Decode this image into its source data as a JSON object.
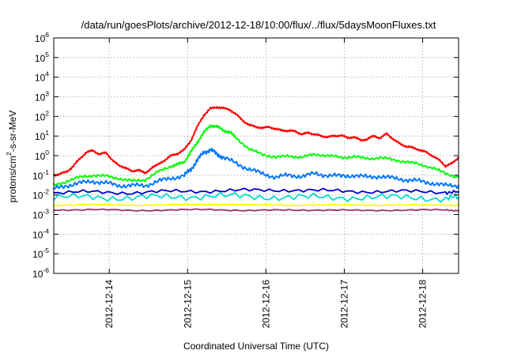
{
  "chart_data": {
    "type": "line",
    "title": "/data/run/goesPlots/archive/2012-12-18/10:00/flux/../flux/5daysMoonFluxes.txt",
    "xlabel": "Coordinated Universal Time (UTC)",
    "ylabel": {
      "prefix": "protons/cm",
      "sup": "2",
      "suffix": "-s-sr-MeV"
    },
    "yscale": "log",
    "ylim": [
      1e-06,
      1000000.0
    ],
    "xlim": [
      "2012-12-13T07:00",
      "2012-12-18T11:00"
    ],
    "grid": true,
    "x_ticks": [
      {
        "value": "2012-12-14T00:00",
        "label": "2012-12-14"
      },
      {
        "value": "2012-12-15T00:00",
        "label": "2012-12-15"
      },
      {
        "value": "2012-12-16T00:00",
        "label": "2012-12-16"
      },
      {
        "value": "2012-12-17T00:00",
        "label": "2012-12-17"
      },
      {
        "value": "2012-12-18T00:00",
        "label": "2012-12-18"
      }
    ],
    "y_ticks": [
      {
        "exp": "6"
      },
      {
        "exp": "5"
      },
      {
        "exp": "4"
      },
      {
        "exp": "3"
      },
      {
        "exp": "2"
      },
      {
        "exp": "1"
      },
      {
        "exp": "0"
      },
      {
        "exp": "-1"
      },
      {
        "exp": "-2"
      },
      {
        "exp": "-3"
      },
      {
        "exp": "-4"
      },
      {
        "exp": "-5"
      },
      {
        "exp": "-6"
      }
    ],
    "y_tick_base": "10",
    "series": [
      {
        "color": "#ff0000",
        "x": [
          "2012-12-13T07:00",
          "2012-12-13T09:00",
          "2012-12-13T11:00",
          "2012-12-13T13:00",
          "2012-12-13T15:00",
          "2012-12-13T17:00",
          "2012-12-13T19:00",
          "2012-12-13T21:00",
          "2012-12-13T23:00",
          "2012-12-14T01:00",
          "2012-12-14T03:00",
          "2012-12-14T05:00",
          "2012-12-14T07:00",
          "2012-12-14T09:00",
          "2012-12-14T11:00",
          "2012-12-14T13:00",
          "2012-12-14T15:00",
          "2012-12-14T17:00",
          "2012-12-14T19:00",
          "2012-12-14T21:00",
          "2012-12-14T23:00",
          "2012-12-15T01:00",
          "2012-12-15T03:00",
          "2012-12-15T05:00",
          "2012-12-15T07:00",
          "2012-12-15T09:00",
          "2012-12-15T11:00",
          "2012-12-15T13:00",
          "2012-12-15T15:00",
          "2012-12-15T17:00",
          "2012-12-15T19:00",
          "2012-12-15T21:00",
          "2012-12-15T23:00",
          "2012-12-16T01:00",
          "2012-12-16T03:00",
          "2012-12-16T05:00",
          "2012-12-16T07:00",
          "2012-12-16T09:00",
          "2012-12-16T11:00",
          "2012-12-16T13:00",
          "2012-12-16T15:00",
          "2012-12-16T17:00",
          "2012-12-16T19:00",
          "2012-12-16T21:00",
          "2012-12-16T23:00",
          "2012-12-17T01:00",
          "2012-12-17T03:00",
          "2012-12-17T05:00",
          "2012-12-17T07:00",
          "2012-12-17T09:00",
          "2012-12-17T11:00",
          "2012-12-17T13:00",
          "2012-12-17T15:00",
          "2012-12-17T17:00",
          "2012-12-17T19:00",
          "2012-12-17T21:00",
          "2012-12-17T23:00",
          "2012-12-18T01:00",
          "2012-12-18T03:00",
          "2012-12-18T05:00",
          "2012-12-18T07:00",
          "2012-12-18T09:00",
          "2012-12-18T11:00"
        ],
        "y": [
          0.1,
          0.12,
          0.15,
          0.3,
          0.7,
          1.5,
          1.8,
          1.2,
          1.4,
          0.6,
          0.3,
          0.25,
          0.15,
          0.2,
          0.12,
          0.25,
          0.35,
          0.6,
          1.0,
          1.3,
          2.0,
          6,
          30,
          120,
          250,
          300,
          260,
          220,
          120,
          60,
          35,
          30,
          25,
          30,
          22,
          20,
          18,
          18,
          12,
          15,
          12,
          10,
          9,
          10,
          11,
          8,
          9,
          6,
          7,
          10,
          8,
          13,
          7,
          4,
          3,
          2.5,
          2,
          1.5,
          1.0,
          0.6,
          0.3,
          0.4,
          0.8
        ]
      },
      {
        "color": "#00ff00",
        "x": [
          "2012-12-13T07:00",
          "2012-12-13T11:00",
          "2012-12-13T15:00",
          "2012-12-13T19:00",
          "2012-12-13T23:00",
          "2012-12-14T03:00",
          "2012-12-14T07:00",
          "2012-12-14T11:00",
          "2012-12-14T15:00",
          "2012-12-14T19:00",
          "2012-12-14T21:00",
          "2012-12-14T23:00",
          "2012-12-15T01:00",
          "2012-12-15T03:00",
          "2012-12-15T05:00",
          "2012-12-15T07:00",
          "2012-12-15T09:00",
          "2012-12-15T11:00",
          "2012-12-15T13:00",
          "2012-12-15T15:00",
          "2012-12-15T19:00",
          "2012-12-15T23:00",
          "2012-12-16T03:00",
          "2012-12-16T07:00",
          "2012-12-16T11:00",
          "2012-12-16T15:00",
          "2012-12-16T19:00",
          "2012-12-16T23:00",
          "2012-12-17T03:00",
          "2012-12-17T07:00",
          "2012-12-17T11:00",
          "2012-12-17T15:00",
          "2012-12-17T19:00",
          "2012-12-17T23:00",
          "2012-12-18T03:00",
          "2012-12-18T07:00",
          "2012-12-18T11:00"
        ],
        "y": [
          0.03,
          0.05,
          0.08,
          0.1,
          0.09,
          0.07,
          0.05,
          0.06,
          0.15,
          0.3,
          0.35,
          0.5,
          1.5,
          5,
          15,
          35,
          30,
          20,
          15,
          8,
          2,
          1.2,
          0.8,
          1.0,
          0.8,
          1.2,
          1.0,
          0.8,
          0.9,
          0.7,
          0.8,
          0.6,
          0.5,
          0.35,
          0.25,
          0.12,
          0.08
        ]
      },
      {
        "color": "#0077ff",
        "x": [
          "2012-12-13T07:00",
          "2012-12-13T11:00",
          "2012-12-13T15:00",
          "2012-12-13T19:00",
          "2012-12-13T23:00",
          "2012-12-14T03:00",
          "2012-12-14T07:00",
          "2012-12-14T11:00",
          "2012-12-14T15:00",
          "2012-12-14T19:00",
          "2012-12-14T23:00",
          "2012-12-15T01:00",
          "2012-12-15T03:00",
          "2012-12-15T05:00",
          "2012-12-15T07:00",
          "2012-12-15T09:00",
          "2012-12-15T11:00",
          "2012-12-15T15:00",
          "2012-12-15T19:00",
          "2012-12-15T23:00",
          "2012-12-16T03:00",
          "2012-12-16T07:00",
          "2012-12-16T11:00",
          "2012-12-16T15:00",
          "2012-12-16T19:00",
          "2012-12-16T23:00",
          "2012-12-17T03:00",
          "2012-12-17T07:00",
          "2012-12-17T11:00",
          "2012-12-17T15:00",
          "2012-12-17T19:00",
          "2012-12-17T23:00",
          "2012-12-18T03:00",
          "2012-12-18T07:00",
          "2012-12-18T11:00"
        ],
        "y": [
          0.02,
          0.03,
          0.04,
          0.05,
          0.04,
          0.03,
          0.03,
          0.03,
          0.05,
          0.07,
          0.1,
          0.2,
          0.6,
          1.5,
          2.0,
          1.2,
          0.8,
          0.4,
          0.2,
          0.12,
          0.08,
          0.1,
          0.09,
          0.12,
          0.1,
          0.09,
          0.1,
          0.08,
          0.09,
          0.07,
          0.06,
          0.05,
          0.04,
          0.03,
          0.03
        ]
      },
      {
        "color": "#00ddcc",
        "x": [
          "2012-12-13T07:00",
          "2012-12-13T19:00",
          "2012-12-14T07:00",
          "2012-12-14T19:00",
          "2012-12-15T07:00",
          "2012-12-15T19:00",
          "2012-12-16T07:00",
          "2012-12-16T19:00",
          "2012-12-17T07:00",
          "2012-12-17T19:00",
          "2012-12-18T07:00",
          "2012-12-18T11:00"
        ],
        "y": [
          0.007,
          0.008,
          0.007,
          0.008,
          0.009,
          0.008,
          0.008,
          0.007,
          0.008,
          0.007,
          0.007,
          0.007
        ]
      },
      {
        "color": "#0000cc",
        "x": [
          "2012-12-13T07:00",
          "2012-12-13T19:00",
          "2012-12-14T07:00",
          "2012-12-14T19:00",
          "2012-12-15T07:00",
          "2012-12-15T19:00",
          "2012-12-16T07:00",
          "2012-12-16T19:00",
          "2012-12-17T07:00",
          "2012-12-17T19:00",
          "2012-12-18T07:00",
          "2012-12-18T11:00"
        ],
        "y": [
          0.013,
          0.014,
          0.013,
          0.015,
          0.016,
          0.017,
          0.018,
          0.016,
          0.015,
          0.015,
          0.014,
          0.014
        ]
      },
      {
        "color": "#ffff00",
        "x": [
          "2012-12-13T07:00",
          "2012-12-13T19:00",
          "2012-12-14T07:00",
          "2012-12-14T19:00",
          "2012-12-15T07:00",
          "2012-12-15T19:00",
          "2012-12-16T07:00",
          "2012-12-16T19:00",
          "2012-12-17T07:00",
          "2012-12-17T19:00",
          "2012-12-18T07:00",
          "2012-12-18T11:00"
        ],
        "y": [
          0.003,
          0.0032,
          0.003,
          0.0031,
          0.0033,
          0.0031,
          0.003,
          0.0031,
          0.003,
          0.0031,
          0.003,
          0.003
        ]
      },
      {
        "color": "#993366",
        "x": [
          "2012-12-13T07:00",
          "2012-12-13T19:00",
          "2012-12-14T07:00",
          "2012-12-14T19:00",
          "2012-12-15T07:00",
          "2012-12-15T19:00",
          "2012-12-16T07:00",
          "2012-12-16T19:00",
          "2012-12-17T07:00",
          "2012-12-17T19:00",
          "2012-12-18T07:00",
          "2012-12-18T11:00"
        ],
        "y": [
          0.0017,
          0.0018,
          0.0016,
          0.0017,
          0.0018,
          0.0016,
          0.0017,
          0.0017,
          0.0016,
          0.0017,
          0.0017,
          0.0016
        ]
      }
    ]
  }
}
